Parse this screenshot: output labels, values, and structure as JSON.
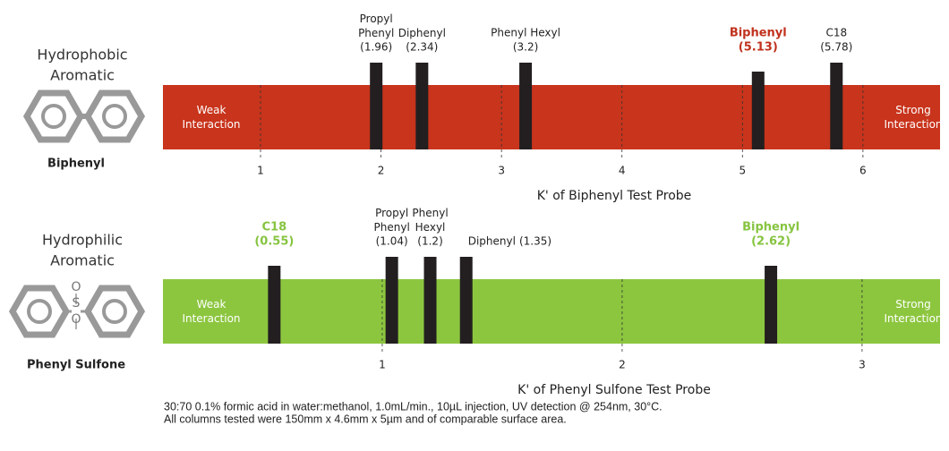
{
  "chart_data": [
    {
      "type": "marker_scale",
      "title": "Hydrophobic Aromatic",
      "probe": "Biphenyl",
      "xlabel": "K' of Biphenyl Test Probe",
      "low_label": "Weak Interaction",
      "high_label": "Strong Interaction",
      "color": "#c8341c",
      "highlight_color": "#c0311d",
      "categories": [
        "Propyl Phenyl",
        "Diphenyl",
        "Phenyl Hexyl",
        "Biphenyl",
        "C18"
      ],
      "values": [
        1.96,
        2.34,
        3.2,
        5.13,
        5.78
      ],
      "value_labels": [
        "(1.96)",
        "(2.34)",
        "(3.2)",
        "(5.13)",
        "(5.78)"
      ],
      "highlighted": [
        false,
        false,
        false,
        true,
        false
      ],
      "xlim": [
        0.19,
        6.64
      ],
      "xticks": [
        1,
        2,
        3,
        4,
        5,
        6
      ]
    },
    {
      "type": "marker_scale",
      "title": "Hydrophilic Aromatic",
      "probe": "Phenyl Sulfone",
      "structure_labels": [
        "O",
        "S",
        "O"
      ],
      "xlabel": "K' of Phenyl Sulfone Test Probe",
      "low_label": "Weak Interaction",
      "high_label": "Strong Interaction",
      "color": "#8cc63f",
      "highlight_color": "#86c440",
      "categories": [
        "C18",
        "Propyl Phenyl",
        "Phenyl Hexyl",
        "Diphenyl",
        "Biphenyl"
      ],
      "values": [
        0.55,
        1.04,
        1.2,
        1.35,
        2.62
      ],
      "value_labels": [
        "(0.55)",
        "(1.04)",
        "(1.2)",
        "(1.35)",
        "(2.62)"
      ],
      "highlighted": [
        true,
        false,
        false,
        false,
        true
      ],
      "xlim": [
        0.086,
        3.325
      ],
      "xticks": [
        1,
        2,
        3
      ]
    }
  ],
  "notes": [
    "30:70 0.1% formic acid in water:methanol, 1.0mL/min., 10µL injection, UV detection @ 254nm, 30°C.",
    "All columns tested were 150mm x 4.6mm x 5µm and of comparable surface area."
  ]
}
